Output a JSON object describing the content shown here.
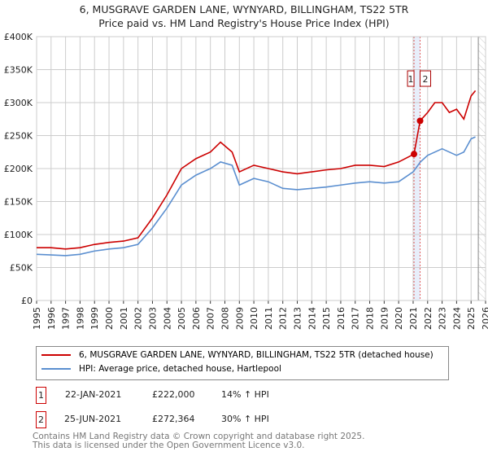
{
  "title": "6, MUSGRAVE GARDEN LANE, WYNYARD, BILLINGHAM, TS22 5TR",
  "subtitle": "Price paid vs. HM Land Registry's House Price Index (HPI)",
  "chart_data": {
    "type": "line",
    "xlim": [
      1995,
      2026
    ],
    "ylim": [
      0,
      400000
    ],
    "xticks": [
      "1995",
      "1996",
      "1997",
      "1998",
      "1999",
      "2000",
      "2001",
      "2002",
      "2003",
      "2004",
      "2005",
      "2006",
      "2007",
      "2008",
      "2009",
      "2010",
      "2011",
      "2012",
      "2013",
      "2014",
      "2015",
      "2016",
      "2017",
      "2018",
      "2019",
      "2020",
      "2021",
      "2022",
      "2023",
      "2024",
      "2025",
      "2026"
    ],
    "yticks": [
      {
        "v": 0,
        "label": "£0"
      },
      {
        "v": 50000,
        "label": "£50K"
      },
      {
        "v": 100000,
        "label": "£100K"
      },
      {
        "v": 150000,
        "label": "£150K"
      },
      {
        "v": 200000,
        "label": "£200K"
      },
      {
        "v": 250000,
        "label": "£250K"
      },
      {
        "v": 300000,
        "label": "£300K"
      },
      {
        "v": 350000,
        "label": "£350K"
      },
      {
        "v": 400000,
        "label": "£400K"
      }
    ],
    "series": [
      {
        "name": "6, MUSGRAVE GARDEN LANE, WYNYARD, BILLINGHAM, TS22 5TR (detached house)",
        "color": "#cc0000",
        "points": [
          [
            1995,
            80000
          ],
          [
            1996,
            80000
          ],
          [
            1997,
            78000
          ],
          [
            1998,
            80000
          ],
          [
            1999,
            85000
          ],
          [
            2000,
            88000
          ],
          [
            2001,
            90000
          ],
          [
            2002,
            95000
          ],
          [
            2003,
            125000
          ],
          [
            2004,
            160000
          ],
          [
            2005,
            200000
          ],
          [
            2006,
            215000
          ],
          [
            2007,
            225000
          ],
          [
            2007.7,
            240000
          ],
          [
            2008.5,
            225000
          ],
          [
            2009,
            195000
          ],
          [
            2010,
            205000
          ],
          [
            2011,
            200000
          ],
          [
            2012,
            195000
          ],
          [
            2013,
            192000
          ],
          [
            2014,
            195000
          ],
          [
            2015,
            198000
          ],
          [
            2016,
            200000
          ],
          [
            2017,
            205000
          ],
          [
            2018,
            205000
          ],
          [
            2019,
            203000
          ],
          [
            2020,
            210000
          ],
          [
            2021.06,
            222000
          ],
          [
            2021.48,
            272364
          ],
          [
            2022,
            285000
          ],
          [
            2022.5,
            300000
          ],
          [
            2023,
            300000
          ],
          [
            2023.5,
            285000
          ],
          [
            2024,
            290000
          ],
          [
            2024.5,
            275000
          ],
          [
            2025,
            310000
          ],
          [
            2025.3,
            318000
          ]
        ]
      },
      {
        "name": "HPI: Average price, detached house, Hartlepool",
        "color": "#5b8fd0",
        "points": [
          [
            1995,
            70000
          ],
          [
            1996,
            69000
          ],
          [
            1997,
            68000
          ],
          [
            1998,
            70000
          ],
          [
            1999,
            75000
          ],
          [
            2000,
            78000
          ],
          [
            2001,
            80000
          ],
          [
            2002,
            85000
          ],
          [
            2003,
            110000
          ],
          [
            2004,
            140000
          ],
          [
            2005,
            175000
          ],
          [
            2006,
            190000
          ],
          [
            2007,
            200000
          ],
          [
            2007.7,
            210000
          ],
          [
            2008.5,
            205000
          ],
          [
            2009,
            175000
          ],
          [
            2010,
            185000
          ],
          [
            2011,
            180000
          ],
          [
            2012,
            170000
          ],
          [
            2013,
            168000
          ],
          [
            2014,
            170000
          ],
          [
            2015,
            172000
          ],
          [
            2016,
            175000
          ],
          [
            2017,
            178000
          ],
          [
            2018,
            180000
          ],
          [
            2019,
            178000
          ],
          [
            2020,
            180000
          ],
          [
            2021,
            195000
          ],
          [
            2021.5,
            210000
          ],
          [
            2022,
            220000
          ],
          [
            2023,
            230000
          ],
          [
            2024,
            220000
          ],
          [
            2024.5,
            225000
          ],
          [
            2025,
            245000
          ],
          [
            2025.3,
            248000
          ]
        ]
      }
    ],
    "sales": [
      {
        "id": "1",
        "x": 2021.06,
        "y": 222000
      },
      {
        "id": "2",
        "x": 2021.48,
        "y": 272364
      }
    ],
    "forecast_start": 2025.5,
    "grid": true
  },
  "legend": {
    "property": "6, MUSGRAVE GARDEN LANE, WYNYARD, BILLINGHAM, TS22 5TR (detached house)",
    "hpi": "HPI: Average price, detached house, Hartlepool"
  },
  "transactions": [
    {
      "id": "1",
      "date": "22-JAN-2021",
      "price": "£222,000",
      "hpi": "14% ↑ HPI"
    },
    {
      "id": "2",
      "date": "25-JUN-2021",
      "price": "£272,364",
      "hpi": "30% ↑ HPI"
    }
  ],
  "footer": {
    "line1": "Contains HM Land Registry data © Crown copyright and database right 2025.",
    "line2": "This data is licensed under the Open Government Licence v3.0."
  }
}
